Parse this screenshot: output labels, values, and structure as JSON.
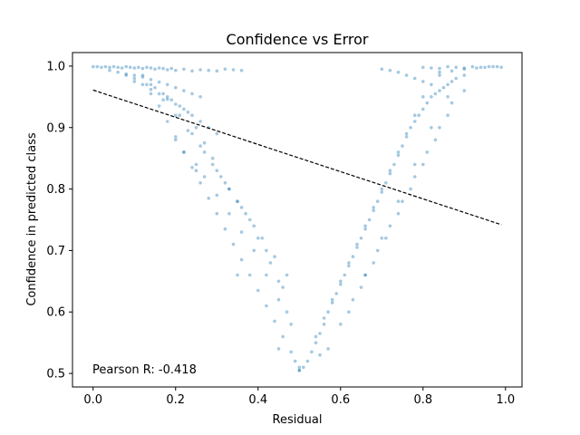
{
  "chart_data": {
    "type": "scatter",
    "title": "Confidence vs Error",
    "xlabel": "Residual",
    "ylabel": "Confidence in predicted class",
    "xlim": [
      -0.05,
      1.04
    ],
    "ylim": [
      0.478,
      1.022
    ],
    "xticks": [
      0.0,
      0.2,
      0.4,
      0.6,
      0.8,
      1.0
    ],
    "yticks": [
      0.5,
      0.6,
      0.7,
      0.8,
      0.9,
      1.0
    ],
    "xtick_labels": [
      "0.0",
      "0.2",
      "0.4",
      "0.6",
      "0.8",
      "1.0"
    ],
    "ytick_labels": [
      "0.5",
      "0.6",
      "0.7",
      "0.8",
      "0.9",
      "1.0"
    ],
    "grid": false,
    "point_color": "#1f77b4",
    "point_alpha": 0.4,
    "annotation": "Pearson R: -0.418",
    "trendline": {
      "style": "dashed",
      "color": "#000000",
      "x": [
        0.0,
        0.99
      ],
      "y": [
        0.961,
        0.742
      ]
    },
    "series": [
      {
        "x": [
          0.0,
          0.01,
          0.02,
          0.03,
          0.04,
          0.05,
          0.06,
          0.07,
          0.08,
          0.09,
          0.1,
          0.11,
          0.12,
          0.13,
          0.14,
          0.15,
          0.16,
          0.17,
          0.18,
          0.19,
          0.2,
          0.22,
          0.24,
          0.26,
          0.28,
          0.3,
          0.32,
          0.34,
          0.36,
          0.04,
          0.06,
          0.08,
          0.1,
          0.12,
          0.14,
          0.16,
          0.18,
          0.2,
          0.22,
          0.24,
          0.26,
          0.1,
          0.12,
          0.14,
          0.16,
          0.18,
          0.2,
          0.22,
          0.24,
          0.26,
          0.28,
          0.3,
          0.12,
          0.14,
          0.16,
          0.18,
          0.2,
          0.22,
          0.24,
          0.26,
          0.28,
          0.3,
          0.32,
          0.34,
          0.36,
          0.38,
          0.4,
          0.42,
          0.44,
          0.46,
          0.48,
          0.49,
          0.5,
          0.5,
          0.14,
          0.17,
          0.2,
          0.23,
          0.26,
          0.29,
          0.32,
          0.35,
          0.38,
          0.41,
          0.44,
          0.47,
          0.2,
          0.22,
          0.25,
          0.27,
          0.3,
          0.33,
          0.36,
          0.39,
          0.42,
          0.45,
          0.48,
          0.08,
          0.1,
          0.13,
          0.15,
          0.17,
          0.19,
          0.21,
          0.23,
          0.25,
          0.27,
          0.29,
          0.31,
          0.33,
          0.35,
          0.37,
          0.4,
          0.43,
          0.46,
          0.18,
          0.21,
          0.24,
          0.27,
          0.3,
          0.33,
          0.36,
          0.39,
          0.42,
          0.45,
          0.47,
          0.51,
          0.52,
          0.53,
          0.54,
          0.55,
          0.56,
          0.57,
          0.58,
          0.59,
          0.6,
          0.61,
          0.62,
          0.63,
          0.64,
          0.65,
          0.66,
          0.67,
          0.68,
          0.69,
          0.7,
          0.71,
          0.72,
          0.73,
          0.74,
          0.75,
          0.76,
          0.77,
          0.78,
          0.79,
          0.8,
          0.81,
          0.82,
          0.83,
          0.84,
          0.85,
          0.86,
          0.87,
          0.88,
          0.54,
          0.56,
          0.58,
          0.6,
          0.62,
          0.64,
          0.66,
          0.68,
          0.7,
          0.72,
          0.74,
          0.76,
          0.78,
          0.8,
          0.82,
          0.84,
          0.57,
          0.6,
          0.63,
          0.66,
          0.69,
          0.72,
          0.75,
          0.78,
          0.81,
          0.84,
          0.87,
          0.62,
          0.65,
          0.68,
          0.71,
          0.74,
          0.77,
          0.8,
          0.83,
          0.86,
          0.9,
          0.66,
          0.7,
          0.74,
          0.78,
          0.82,
          0.86,
          0.9,
          0.8,
          0.82,
          0.84,
          0.86,
          0.88,
          0.9,
          0.92,
          0.94,
          0.96,
          0.98,
          0.99,
          0.84,
          0.87,
          0.9,
          0.93,
          0.95,
          0.97,
          0.7,
          0.72,
          0.74,
          0.76,
          0.78,
          0.8,
          0.45,
          0.5,
          0.55,
          0.35,
          0.25
        ],
        "y": [
          0.999,
          0.999,
          0.998,
          0.999,
          0.998,
          0.999,
          0.998,
          0.997,
          0.999,
          0.998,
          0.997,
          0.998,
          0.996,
          0.998,
          0.997,
          0.995,
          0.997,
          0.996,
          0.994,
          0.996,
          0.993,
          0.995,
          0.992,
          0.994,
          0.993,
          0.992,
          0.995,
          0.994,
          0.993,
          0.993,
          0.99,
          0.987,
          0.985,
          0.982,
          0.978,
          0.974,
          0.97,
          0.965,
          0.96,
          0.955,
          0.95,
          0.975,
          0.97,
          0.962,
          0.955,
          0.946,
          0.938,
          0.93,
          0.92,
          0.91,
          0.9,
          0.89,
          0.985,
          0.955,
          0.935,
          0.91,
          0.885,
          0.86,
          0.835,
          0.81,
          0.785,
          0.76,
          0.735,
          0.71,
          0.685,
          0.66,
          0.635,
          0.61,
          0.585,
          0.56,
          0.535,
          0.52,
          0.51,
          0.505,
          0.97,
          0.945,
          0.92,
          0.895,
          0.87,
          0.84,
          0.81,
          0.78,
          0.75,
          0.72,
          0.69,
          0.66,
          0.88,
          0.86,
          0.84,
          0.82,
          0.79,
          0.76,
          0.73,
          0.7,
          0.66,
          0.62,
          0.58,
          0.985,
          0.98,
          0.97,
          0.965,
          0.955,
          0.945,
          0.935,
          0.925,
          0.9,
          0.875,
          0.85,
          0.82,
          0.8,
          0.78,
          0.76,
          0.72,
          0.68,
          0.64,
          0.95,
          0.92,
          0.89,
          0.86,
          0.83,
          0.8,
          0.77,
          0.74,
          0.7,
          0.65,
          0.6,
          0.51,
          0.52,
          0.535,
          0.55,
          0.565,
          0.58,
          0.6,
          0.615,
          0.63,
          0.645,
          0.66,
          0.675,
          0.69,
          0.705,
          0.72,
          0.735,
          0.75,
          0.765,
          0.78,
          0.795,
          0.81,
          0.825,
          0.84,
          0.855,
          0.87,
          0.885,
          0.9,
          0.91,
          0.92,
          0.93,
          0.94,
          0.95,
          0.955,
          0.96,
          0.965,
          0.97,
          0.975,
          0.98,
          0.56,
          0.59,
          0.62,
          0.65,
          0.68,
          0.71,
          0.74,
          0.77,
          0.8,
          0.83,
          0.86,
          0.89,
          0.92,
          0.95,
          0.97,
          0.985,
          0.54,
          0.58,
          0.62,
          0.66,
          0.7,
          0.74,
          0.78,
          0.82,
          0.86,
          0.9,
          0.94,
          0.6,
          0.64,
          0.68,
          0.72,
          0.76,
          0.8,
          0.84,
          0.88,
          0.92,
          0.96,
          0.66,
          0.72,
          0.78,
          0.84,
          0.9,
          0.95,
          0.985,
          0.998,
          0.997,
          0.996,
          0.999,
          0.998,
          0.997,
          0.999,
          0.998,
          0.999,
          0.999,
          0.998,
          0.99,
          0.992,
          0.995,
          0.997,
          0.998,
          0.999,
          0.995,
          0.993,
          0.99,
          0.985,
          0.98,
          0.975,
          0.54,
          0.505,
          0.53,
          0.66,
          0.83
        ]
      }
    ]
  }
}
